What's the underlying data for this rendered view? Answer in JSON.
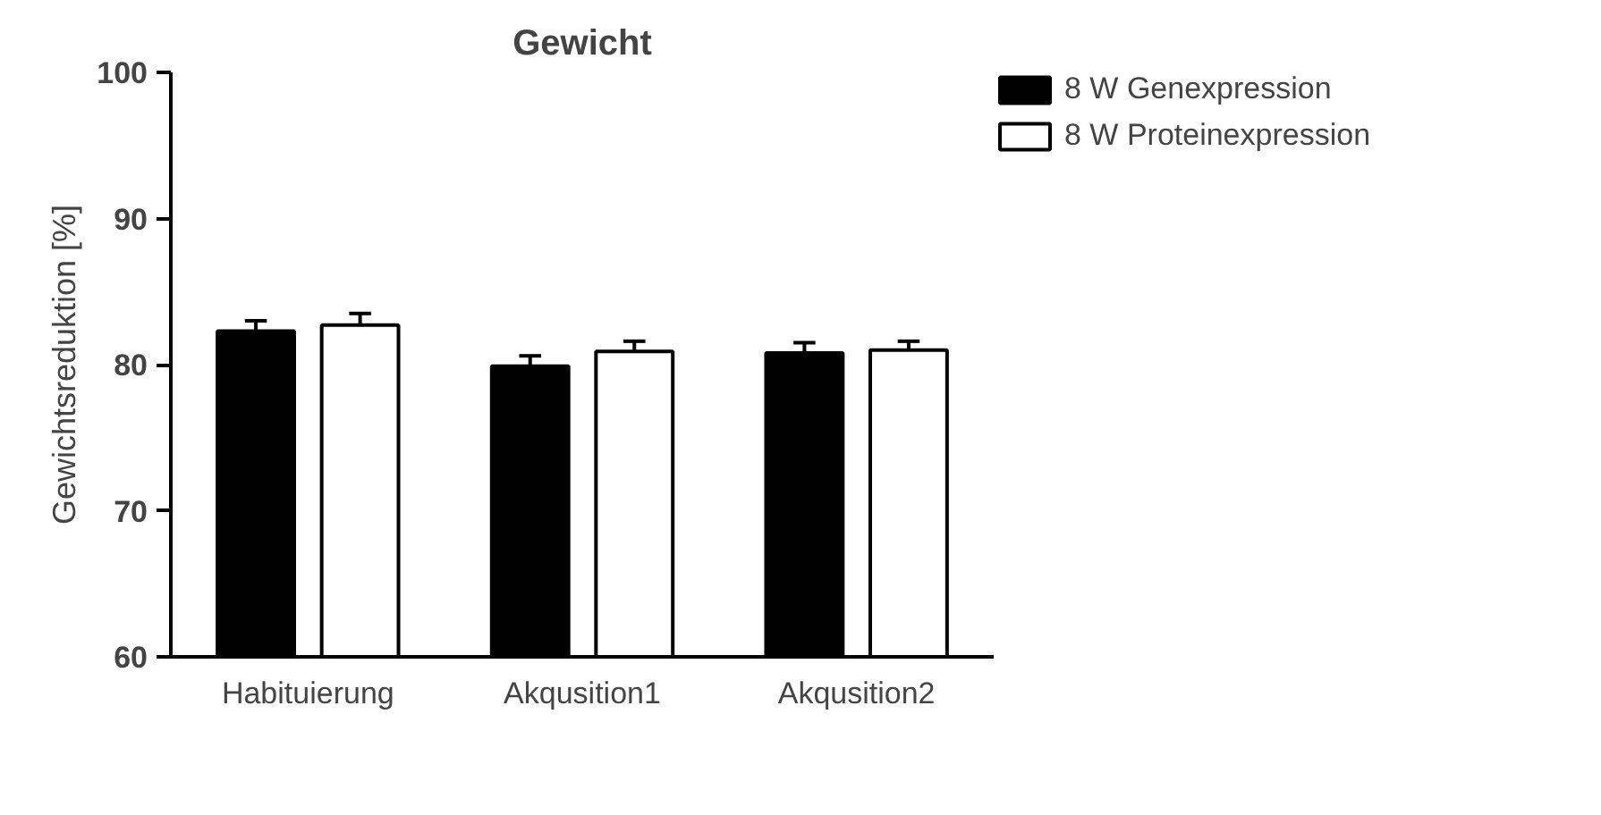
{
  "chart_data": {
    "type": "bar",
    "title": "Gewicht",
    "ylabel": "Gewichtsreduktion [%]",
    "categories": [
      "Habituierung",
      "Akqusition1",
      "Akqusition2"
    ],
    "series": [
      {
        "name": "8 W Genexpression",
        "color": "#000000",
        "values": [
          82.3,
          79.9,
          80.8
        ],
        "errors": [
          0.7,
          0.7,
          0.7
        ]
      },
      {
        "name": "8 W Proteinexpression",
        "color": "#ffffff",
        "values": [
          82.7,
          80.9,
          81.0
        ],
        "errors": [
          0.8,
          0.7,
          0.6
        ]
      }
    ],
    "ylim": [
      60,
      100
    ],
    "yticks": [
      60,
      70,
      80,
      90,
      100
    ],
    "grid": false,
    "legend": "top right"
  }
}
